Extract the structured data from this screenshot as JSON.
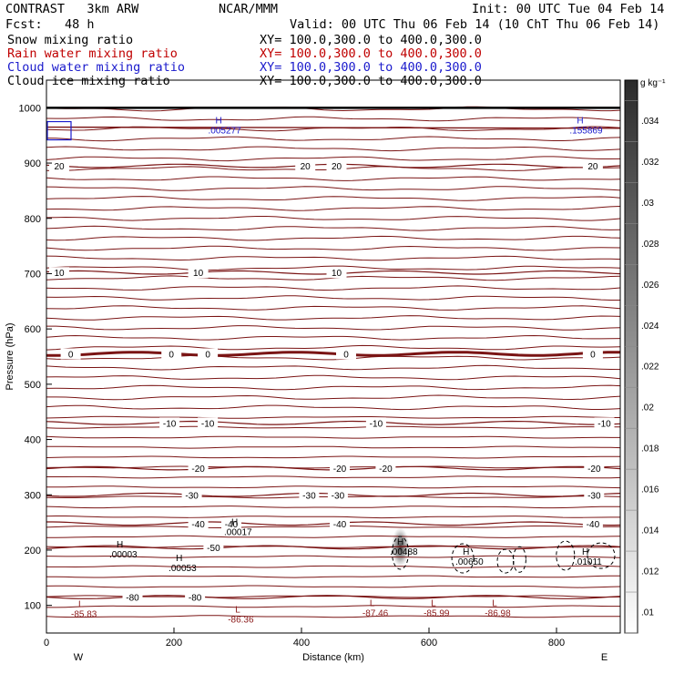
{
  "header": {
    "model": "CONTRAST   3km ARW",
    "org": "NCAR/MMM",
    "init": "Init: 00 UTC Tue 04 Feb 14",
    "fcst": "Fcst:   48 h",
    "valid": "Valid: 00 UTC Thu 06 Feb 14 (10 ChT Thu 06 Feb 14)"
  },
  "fields": [
    {
      "label": "Snow mixing ratio",
      "xy": "XY= 100.0,300.0 to 400.0,300.0",
      "color": "#000000"
    },
    {
      "label": "Rain water mixing ratio",
      "xy": "XY= 100.0,300.0 to 400.0,300.0",
      "color": "#c00000"
    },
    {
      "label": "Cloud water mixing ratio",
      "xy": "XY= 100.0,300.0 to 400.0,300.0",
      "color": "#1a1acc"
    },
    {
      "label": "Cloud ice mixing ratio",
      "xy": "XY= 100.0,300.0 to 400.0,300.0",
      "color": "#000000"
    }
  ],
  "chart_data": {
    "type": "contour",
    "xlabel": "Distance (km)",
    "ylabel": "Pressure (hPa)",
    "xlim": [
      0,
      900
    ],
    "ylim": [
      1050,
      50
    ],
    "x_ticks": [
      0,
      200,
      400,
      600,
      800
    ],
    "y_ticks": [
      100,
      200,
      300,
      400,
      500,
      600,
      700,
      800,
      900,
      1000
    ],
    "end_labels": {
      "left": "W",
      "right": "E"
    },
    "colorbar": {
      "unit": "g kg⁻¹",
      "ticks": [
        ".034",
        ".032",
        ".03",
        ".028",
        ".026",
        ".024",
        ".022",
        ".02",
        ".018",
        ".016",
        ".014",
        ".012",
        ".01"
      ]
    },
    "temperature_contours": [
      {
        "value": "-80",
        "pressure": 115,
        "labels": [
          {
            "text": "-80",
            "x": 135
          },
          {
            "text": "-80",
            "x": 233
          }
        ]
      },
      {
        "value": "-50",
        "pressure": 205,
        "labels": [
          {
            "text": "-50",
            "x": 262
          }
        ]
      },
      {
        "value": "-40",
        "pressure": 248,
        "labels": [
          {
            "text": "-40",
            "x": 238
          },
          {
            "text": "-40",
            "x": 290
          },
          {
            "text": "-40",
            "x": 460
          },
          {
            "text": "-40",
            "x": 857
          }
        ]
      },
      {
        "value": "-30",
        "pressure": 300,
        "labels": [
          {
            "text": "-30",
            "x": 228
          },
          {
            "text": "-30",
            "x": 412
          },
          {
            "text": "-30",
            "x": 457
          },
          {
            "text": "-30",
            "x": 859
          }
        ]
      },
      {
        "value": "-20",
        "pressure": 348,
        "labels": [
          {
            "text": "-20",
            "x": 238
          },
          {
            "text": "-20",
            "x": 460
          },
          {
            "text": "-20",
            "x": 532
          },
          {
            "text": "-20",
            "x": 859
          }
        ]
      },
      {
        "value": "-10",
        "pressure": 430,
        "labels": [
          {
            "text": "-10",
            "x": 193
          },
          {
            "text": "-10",
            "x": 253
          },
          {
            "text": "-10",
            "x": 517
          },
          {
            "text": "-10",
            "x": 875
          }
        ]
      },
      {
        "value": "0",
        "pressure": 555,
        "bold": true,
        "labels": [
          {
            "text": "0",
            "x": 38
          },
          {
            "text": "0",
            "x": 196
          },
          {
            "text": "0",
            "x": 253
          },
          {
            "text": "0",
            "x": 470
          },
          {
            "text": "0",
            "x": 857
          }
        ]
      },
      {
        "value": "10",
        "pressure": 702,
        "labels": [
          {
            "text": "10",
            "x": 20
          },
          {
            "text": "10",
            "x": 238
          },
          {
            "text": "10",
            "x": 455
          }
        ]
      },
      {
        "value": "20",
        "pressure": 895,
        "labels": [
          {
            "text": "20",
            "x": 20
          },
          {
            "text": "20",
            "x": 406
          },
          {
            "text": "20",
            "x": 455
          },
          {
            "text": "20",
            "x": 857
          }
        ]
      }
    ],
    "extrema": [
      {
        "type": "L",
        "value": "-85.83",
        "x": 50,
        "pressure": 97,
        "color": "#8b1a1a"
      },
      {
        "type": "L",
        "value": "-86.36",
        "x": 296,
        "pressure": 87,
        "color": "#8b1a1a"
      },
      {
        "type": "L",
        "value": "-87.46",
        "x": 507,
        "pressure": 99,
        "color": "#8b1a1a"
      },
      {
        "type": "L",
        "value": "-85.99",
        "x": 603,
        "pressure": 99,
        "color": "#8b1a1a"
      },
      {
        "type": "L",
        "value": "-86.98",
        "x": 699,
        "pressure": 99,
        "color": "#8b1a1a"
      },
      {
        "type": "H",
        "value": ".00053",
        "x": 203,
        "pressure": 180,
        "color": "#000000"
      },
      {
        "type": "H",
        "value": ".00003",
        "x": 110,
        "pressure": 205,
        "color": "#000000"
      },
      {
        "type": "H",
        "value": ".00017",
        "x": 290,
        "pressure": 245,
        "color": "#000000"
      },
      {
        "type": "H",
        "value": ".00488",
        "x": 550,
        "pressure": 210,
        "color": "#000000"
      },
      {
        "type": "H",
        "value": ".00650",
        "x": 653,
        "pressure": 192,
        "color": "#000000"
      },
      {
        "type": "H",
        "value": ".01011",
        "x": 840,
        "pressure": 192,
        "color": "#000000"
      },
      {
        "type": "H",
        "value": ".005277",
        "x": 265,
        "pressure": 972,
        "color": "#1a1acc"
      },
      {
        "type": "H",
        "value": ".155869",
        "x": 832,
        "pressure": 972,
        "color": "#1a1acc"
      }
    ]
  }
}
